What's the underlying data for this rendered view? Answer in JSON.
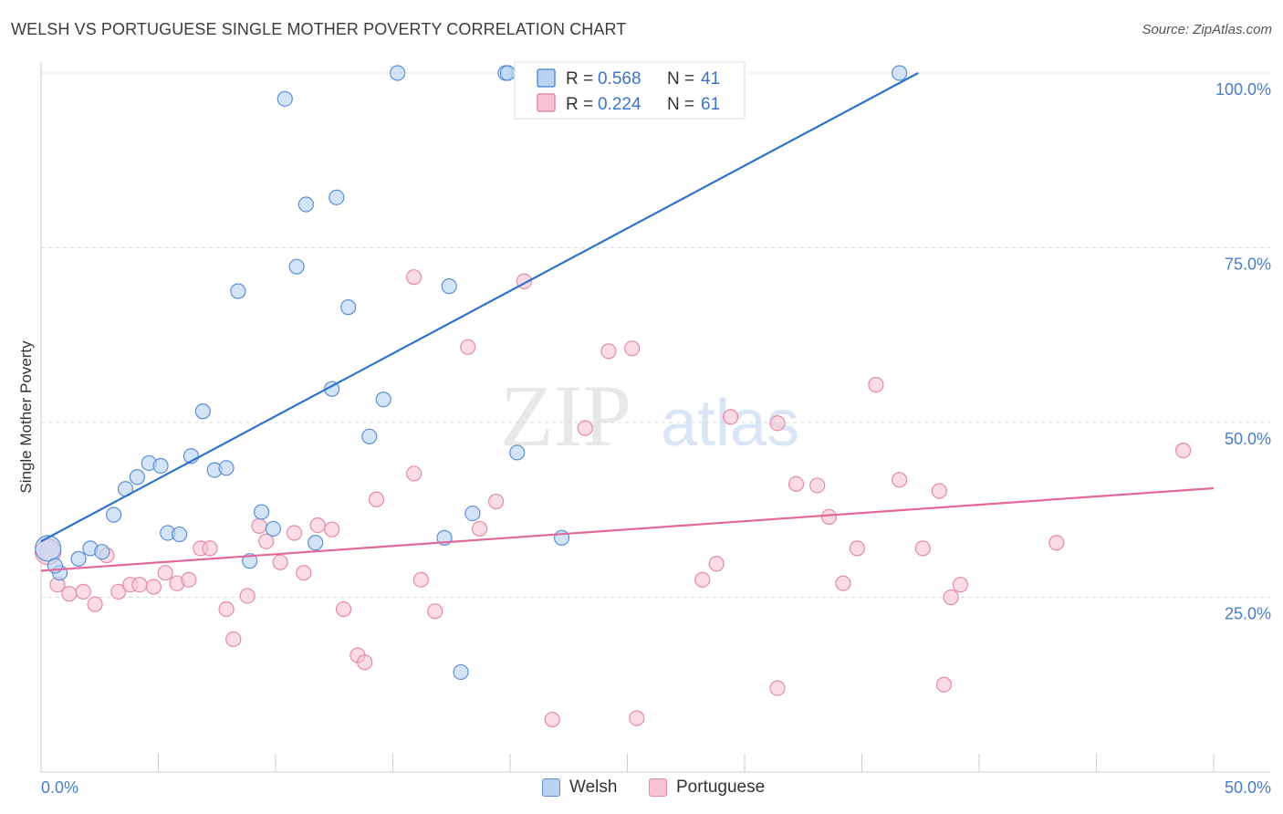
{
  "header": {
    "title": "WELSH VS PORTUGUESE SINGLE MOTHER POVERTY CORRELATION CHART",
    "source": "Source: ZipAtlas.com"
  },
  "watermark": {
    "zip": "ZIP",
    "atlas": "atlas"
  },
  "colors": {
    "welsh_fill": "#b7d2f3",
    "welsh_stroke": "#5b8fd6",
    "welsh_line": "#2f72cc",
    "portuguese_fill": "#f8c3d3",
    "portuguese_stroke": "#e58aa7",
    "portuguese_line": "#e0689a",
    "axis_label": "#4a7cc6",
    "grid": "#dddddd"
  },
  "legend_top": [
    {
      "series": "welsh",
      "r_label": "R =",
      "r_value": "0.568",
      "n_label": "N =",
      "n_value": "41"
    },
    {
      "series": "portuguese",
      "r_label": "R =",
      "r_value": "0.224",
      "n_label": "N =",
      "n_value": "61"
    }
  ],
  "legend_bottom": [
    {
      "series": "welsh",
      "label": "Welsh"
    },
    {
      "series": "portuguese",
      "label": "Portuguese"
    }
  ],
  "chart_data": {
    "type": "scatter",
    "title": "WELSH VS PORTUGUESE SINGLE MOTHER POVERTY CORRELATION CHART",
    "xlabel": "",
    "ylabel": "Single Mother Poverty",
    "xlim": [
      0,
      50
    ],
    "ylim": [
      0,
      100
    ],
    "x_tick_labels": [
      "0.0%",
      "50.0%"
    ],
    "y_tick_labels": [
      {
        "value": 25,
        "label": "25.0%"
      },
      {
        "value": 50,
        "label": "50.0%"
      },
      {
        "value": 75,
        "label": "75.0%"
      },
      {
        "value": 100,
        "label": "100.0%"
      }
    ],
    "grid": true,
    "legend_position": "top-center",
    "series": [
      {
        "name": "Welsh",
        "r": 0.568,
        "n": 41,
        "trend": {
          "x": [
            0,
            37.4
          ],
          "y": [
            33,
            100
          ]
        },
        "points": [
          [
            0.3,
            32
          ],
          [
            0.8,
            28.5
          ],
          [
            1.6,
            30.5
          ],
          [
            2.1,
            32
          ],
          [
            2.6,
            31.5
          ],
          [
            3.1,
            36.8
          ],
          [
            3.6,
            40.5
          ],
          [
            4.1,
            42.2
          ],
          [
            4.6,
            44.2
          ],
          [
            5.1,
            43.8
          ],
          [
            5.4,
            34.2
          ],
          [
            5.9,
            34.0
          ],
          [
            6.4,
            45.2
          ],
          [
            6.9,
            51.6
          ],
          [
            7.4,
            43.2
          ],
          [
            7.9,
            43.5
          ],
          [
            8.4,
            68.8
          ],
          [
            8.9,
            30.2
          ],
          [
            9.4,
            37.2
          ],
          [
            9.9,
            34.8
          ],
          [
            10.4,
            96.3
          ],
          [
            10.9,
            72.3
          ],
          [
            11.3,
            81.2
          ],
          [
            11.7,
            32.8
          ],
          [
            12.4,
            54.8
          ],
          [
            12.6,
            82.2
          ],
          [
            13.1,
            66.5
          ],
          [
            14.0,
            48.0
          ],
          [
            14.6,
            53.3
          ],
          [
            15.2,
            100
          ],
          [
            17.2,
            33.5
          ],
          [
            17.4,
            69.5
          ],
          [
            17.9,
            14.3
          ],
          [
            18.4,
            37.0
          ],
          [
            19.8,
            100
          ],
          [
            20.3,
            45.7
          ],
          [
            22.2,
            33.5
          ],
          [
            25.4,
            100
          ],
          [
            36.6,
            100
          ],
          [
            19.9,
            100.0
          ],
          [
            0.6,
            29.5
          ]
        ]
      },
      {
        "name": "Portuguese",
        "r": 0.224,
        "n": 61,
        "trend": {
          "x": [
            0,
            50
          ],
          "y": [
            28.8,
            40.6
          ]
        },
        "points": [
          [
            0.3,
            31.5
          ],
          [
            0.7,
            26.8
          ],
          [
            1.2,
            25.5
          ],
          [
            1.8,
            25.8
          ],
          [
            2.3,
            24.0
          ],
          [
            2.8,
            31.0
          ],
          [
            3.3,
            25.8
          ],
          [
            3.8,
            26.8
          ],
          [
            4.2,
            26.8
          ],
          [
            4.8,
            26.5
          ],
          [
            5.3,
            28.5
          ],
          [
            5.8,
            27.0
          ],
          [
            6.3,
            27.5
          ],
          [
            6.8,
            32.0
          ],
          [
            7.2,
            32.0
          ],
          [
            7.9,
            23.3
          ],
          [
            8.2,
            19.0
          ],
          [
            8.8,
            25.2
          ],
          [
            9.3,
            35.2
          ],
          [
            9.6,
            33.0
          ],
          [
            10.2,
            30.0
          ],
          [
            10.8,
            34.2
          ],
          [
            11.2,
            28.5
          ],
          [
            11.8,
            35.3
          ],
          [
            12.4,
            34.7
          ],
          [
            12.9,
            23.3
          ],
          [
            13.5,
            16.7
          ],
          [
            13.8,
            15.7
          ],
          [
            14.3,
            39.0
          ],
          [
            15.9,
            70.8
          ],
          [
            15.9,
            42.7
          ],
          [
            16.2,
            27.5
          ],
          [
            16.8,
            23.0
          ],
          [
            18.2,
            60.8
          ],
          [
            18.7,
            34.8
          ],
          [
            19.4,
            38.7
          ],
          [
            20.6,
            70.2
          ],
          [
            21.8,
            7.5
          ],
          [
            23.2,
            49.2
          ],
          [
            24.2,
            60.2
          ],
          [
            25.2,
            60.6
          ],
          [
            25.4,
            7.7
          ],
          [
            28.2,
            27.5
          ],
          [
            28.8,
            29.8
          ],
          [
            29.4,
            50.8
          ],
          [
            31.4,
            49.9
          ],
          [
            31.4,
            12.0
          ],
          [
            32.2,
            41.2
          ],
          [
            33.1,
            41.0
          ],
          [
            33.6,
            36.5
          ],
          [
            34.2,
            27.0
          ],
          [
            34.8,
            32.0
          ],
          [
            35.6,
            55.4
          ],
          [
            36.6,
            41.8
          ],
          [
            37.6,
            32.0
          ],
          [
            38.3,
            40.2
          ],
          [
            38.5,
            12.5
          ],
          [
            38.8,
            25.0
          ],
          [
            39.2,
            26.8
          ],
          [
            43.3,
            32.8
          ],
          [
            48.7,
            46.0
          ]
        ]
      }
    ]
  }
}
